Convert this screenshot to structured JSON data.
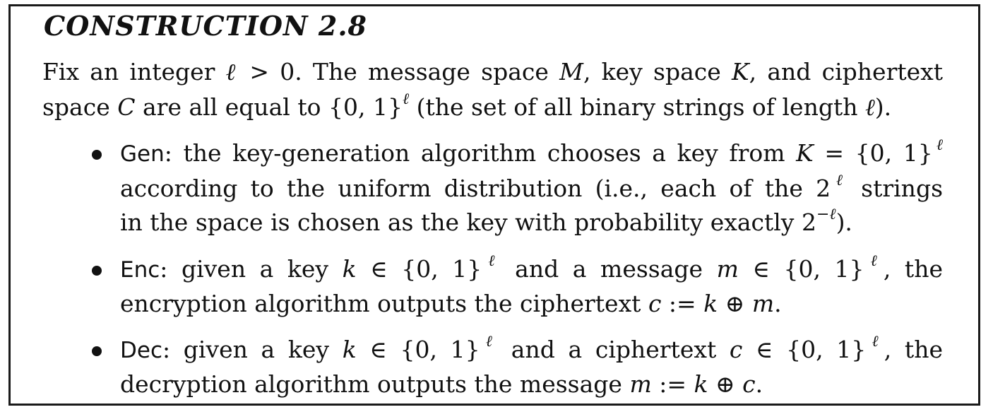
{
  "title": "CONSTRUCTION 2.8",
  "intro": {
    "line1": {
      "a": "Fix an integer ",
      "ell": "ℓ",
      "b": " > 0. The message space ",
      "M": "M",
      "c": ", key space ",
      "K": "K",
      "d": ", and ciphertext"
    },
    "line2": {
      "a": "space ",
      "C": "C",
      "b": " are all equal to {0, 1}",
      "sup": "ℓ",
      "c": " (the set of all binary strings of length ",
      "ell": "ℓ",
      "d": ")."
    }
  },
  "gen": {
    "name": "Gen",
    "line1": {
      "a": ": the key-generation algorithm chooses a key from ",
      "K": "K",
      "b": " = {0, 1}",
      "sup": "ℓ"
    },
    "line2": {
      "a": "according to the uniform distribution (i.e., each of the 2",
      "sup": "ℓ",
      "b": " strings"
    },
    "line3": {
      "a": "in the space is chosen as the key with probability exactly 2",
      "sup": "−ℓ",
      "b": ")."
    }
  },
  "enc": {
    "name": "Enc",
    "line1": {
      "a": ": given a key ",
      "k": "k",
      "b": " ∈ {0, 1}",
      "sup1": "ℓ",
      "c": " and a message ",
      "m": "m",
      "d": " ∈ {0, 1}",
      "sup2": "ℓ",
      "e": ", the"
    },
    "line2": {
      "a": "encryption algorithm outputs the ciphertext ",
      "c": "c",
      "b": " := ",
      "k": "k",
      "op": " ⊕ ",
      "m": "m",
      "end": "."
    }
  },
  "dec": {
    "name": "Dec",
    "line1": {
      "a": ": given a key ",
      "k": "k",
      "b": " ∈ {0, 1}",
      "sup1": "ℓ",
      "c": " and a ciphertext ",
      "cvar": "c",
      "d": " ∈ {0, 1}",
      "sup2": "ℓ",
      "e": ", the"
    },
    "line2": {
      "a": "decryption algorithm outputs the message ",
      "m": "m",
      "b": " := ",
      "k": "k",
      "op": " ⊕ ",
      "c": "c",
      "end": "."
    }
  }
}
